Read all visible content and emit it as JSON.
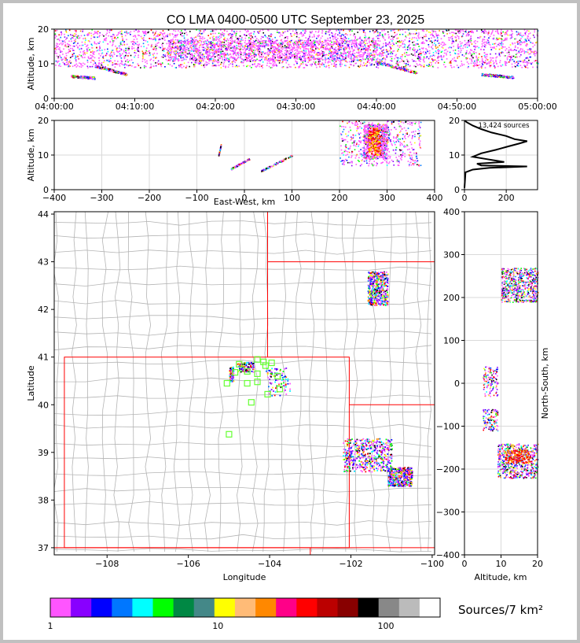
{
  "title": "CO LMA 0400-0500 UTC September 23, 2025",
  "colors": {
    "axis": "#000000",
    "grid": "#d9d9d9",
    "county": "#b4b4b4",
    "state_border": "#ff0000",
    "station_marker": "#66ff33"
  },
  "chart_data": [
    {
      "id": "time-height",
      "type": "scatter",
      "title": "",
      "ylabel": "Altitude, km",
      "xlabel": "",
      "x_ticks": [
        "04:00:00",
        "04:10:00",
        "04:20:00",
        "04:30:00",
        "04:40:00",
        "04:50:00",
        "05:00:00"
      ],
      "xlim_minutes": [
        0,
        60
      ],
      "ylim": [
        0,
        20
      ],
      "y_ticks": [
        "0",
        "10",
        "20"
      ],
      "features": [
        {
          "x": [
            0,
            60
          ],
          "y": [
            9,
            20
          ],
          "desc": "dense upper-level source layer"
        },
        {
          "x": [
            2,
            5
          ],
          "y": [
            6,
            6.5
          ]
        },
        {
          "x": [
            5,
            9
          ],
          "y": [
            7,
            9.5
          ]
        },
        {
          "x": [
            40,
            45
          ],
          "y": [
            7.5,
            10.5
          ]
        },
        {
          "x": [
            53,
            57
          ],
          "y": [
            6.2,
            7
          ]
        }
      ]
    },
    {
      "id": "east-west-altitude",
      "type": "scatter",
      "xlabel": "East-West, km",
      "ylabel": "Altitude, km",
      "xlim": [
        -400,
        400
      ],
      "ylim": [
        0,
        20
      ],
      "x_ticks": [
        "−400",
        "−300",
        "−200",
        "−100",
        "0",
        "100",
        "200",
        "300",
        "400"
      ],
      "y_ticks": [
        "0",
        "10",
        "20"
      ],
      "features": [
        {
          "x": [
            200,
            370
          ],
          "y": [
            7,
            20
          ],
          "desc": "main storm column"
        },
        {
          "x": [
            35,
            100
          ],
          "y": [
            5.5,
            10
          ]
        },
        {
          "x": [
            -30,
            10
          ],
          "y": [
            6,
            9
          ]
        },
        {
          "x": [
            -55,
            -50
          ],
          "y": [
            10,
            13
          ]
        }
      ]
    },
    {
      "id": "altitude-histogram",
      "type": "line",
      "annotation": "13,424 sources",
      "xlim": [
        0,
        350
      ],
      "ylim": [
        0,
        20
      ],
      "x_ticks": [
        "0",
        "200"
      ],
      "y_ticks": [
        "0",
        "10",
        "20"
      ],
      "profile": [
        {
          "alt": 0.5,
          "count": 0
        },
        {
          "alt": 5.0,
          "count": 5
        },
        {
          "alt": 5.8,
          "count": 40
        },
        {
          "alt": 6.3,
          "count": 120
        },
        {
          "alt": 6.7,
          "count": 300
        },
        {
          "alt": 7.0,
          "count": 80
        },
        {
          "alt": 7.5,
          "count": 60
        },
        {
          "alt": 8.0,
          "count": 190
        },
        {
          "alt": 8.8,
          "count": 110
        },
        {
          "alt": 9.5,
          "count": 40
        },
        {
          "alt": 10.5,
          "count": 80
        },
        {
          "alt": 11.5,
          "count": 150
        },
        {
          "alt": 12.5,
          "count": 210
        },
        {
          "alt": 13.3,
          "count": 260
        },
        {
          "alt": 14.0,
          "count": 300
        },
        {
          "alt": 14.6,
          "count": 240
        },
        {
          "alt": 15.5,
          "count": 200
        },
        {
          "alt": 16.5,
          "count": 130
        },
        {
          "alt": 17.5,
          "count": 80
        },
        {
          "alt": 18.5,
          "count": 40
        },
        {
          "alt": 19.5,
          "count": 10
        },
        {
          "alt": 20,
          "count": 0
        }
      ]
    },
    {
      "id": "plan-view",
      "type": "map",
      "xlabel": "Longitude",
      "ylabel": "Latitude",
      "xlim": [
        -109.3,
        -99.94
      ],
      "ylim": [
        36.85,
        44.05
      ],
      "x_ticks": [
        {
          "value": -108,
          "label": "−108"
        },
        {
          "value": -106,
          "label": "−106"
        },
        {
          "value": -104,
          "label": "−104"
        },
        {
          "value": -102,
          "label": "−102"
        },
        {
          "value": -100,
          "label": "−100"
        }
      ],
      "y_ticks": [
        {
          "value": 37,
          "label": "37"
        },
        {
          "value": 38,
          "label": "38"
        },
        {
          "value": 39,
          "label": "39"
        },
        {
          "value": 40,
          "label": "40"
        },
        {
          "value": 41,
          "label": "41"
        },
        {
          "value": 42,
          "label": "42"
        },
        {
          "value": 43,
          "label": "43"
        },
        {
          "value": 44,
          "label": "44"
        }
      ],
      "source_clusters": [
        {
          "lon": [
            -101.6,
            -101.1
          ],
          "lat": [
            42.1,
            42.8
          ]
        },
        {
          "lon": [
            -102.2,
            -101.0
          ],
          "lat": [
            38.6,
            39.3
          ]
        },
        {
          "lon": [
            -101.1,
            -100.5
          ],
          "lat": [
            38.3,
            38.7
          ]
        },
        {
          "lon": [
            -104.1,
            -103.5
          ],
          "lat": [
            40.2,
            40.8
          ]
        },
        {
          "lon": [
            -104.8,
            -104.4
          ],
          "lat": [
            40.7,
            40.9
          ]
        },
        {
          "lon": [
            -105.0,
            -104.9
          ],
          "lat": [
            40.5,
            40.8
          ]
        }
      ],
      "stations": [
        {
          "lon": -104.3,
          "lat": 40.95
        },
        {
          "lon": -104.15,
          "lat": 40.9
        },
        {
          "lon": -103.95,
          "lat": 40.88
        },
        {
          "lon": -104.75,
          "lat": 40.85
        },
        {
          "lon": -104.1,
          "lat": 40.82
        },
        {
          "lon": -104.85,
          "lat": 40.68
        },
        {
          "lon": -104.55,
          "lat": 40.7
        },
        {
          "lon": -104.3,
          "lat": 40.65
        },
        {
          "lon": -103.8,
          "lat": 40.6
        },
        {
          "lon": -105.05,
          "lat": 40.45
        },
        {
          "lon": -104.55,
          "lat": 40.45
        },
        {
          "lon": -104.3,
          "lat": 40.48
        },
        {
          "lon": -103.75,
          "lat": 40.33
        },
        {
          "lon": -104.05,
          "lat": 40.22
        },
        {
          "lon": -104.45,
          "lat": 40.05
        },
        {
          "lon": -105.0,
          "lat": 39.38
        }
      ]
    },
    {
      "id": "altitude-north-south",
      "type": "scatter",
      "xlabel": "Altitude, km",
      "ylabel": "North-South, km",
      "xlim": [
        0,
        20
      ],
      "ylim": [
        -400,
        400
      ],
      "x_ticks": [
        "0",
        "10",
        "20"
      ],
      "y_ticks": [
        "−400",
        "−300",
        "−200",
        "−100",
        "0",
        "100",
        "200",
        "300",
        "400"
      ],
      "features": [
        {
          "x": [
            10,
            20
          ],
          "y": [
            190,
            270
          ]
        },
        {
          "x": [
            9,
            20
          ],
          "y": [
            -220,
            -140
          ]
        },
        {
          "x": [
            5,
            9
          ],
          "y": [
            -30,
            40
          ]
        },
        {
          "x": [
            5,
            9
          ],
          "y": [
            -110,
            -60
          ]
        }
      ]
    }
  ],
  "colorbar": {
    "label": "Sources/7 km²",
    "tick_labels": [
      "1",
      "10",
      "100"
    ],
    "colors": [
      "#ff55ff",
      "#8800ff",
      "#0000ff",
      "#0077ff",
      "#00ffff",
      "#00ff00",
      "#008844",
      "#448888",
      "#ffff00",
      "#ffbb77",
      "#ff8800",
      "#ff0088",
      "#ff0000",
      "#bb0000",
      "#880000",
      "#000000",
      "#888888",
      "#bbbbbb",
      "#ffffff"
    ]
  }
}
